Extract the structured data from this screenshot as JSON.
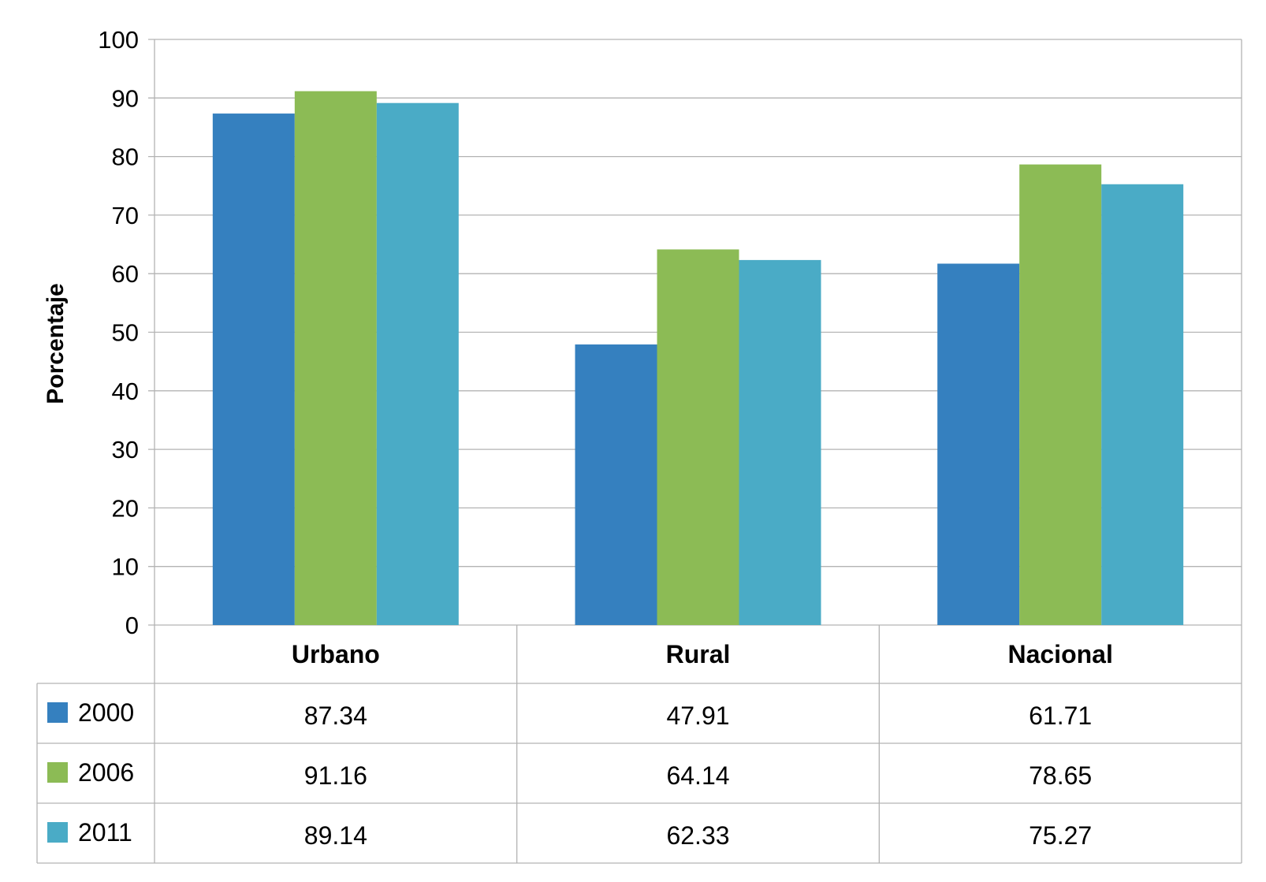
{
  "chart_data": {
    "type": "bar",
    "ylabel": "Porcentaje",
    "ylim": [
      0,
      100
    ],
    "yticks": [
      0,
      10,
      20,
      30,
      40,
      50,
      60,
      70,
      80,
      90,
      100
    ],
    "categories": [
      "Urbano",
      "Rural",
      "Nacional"
    ],
    "series": [
      {
        "name": "2000",
        "color": "#3580BF",
        "values": [
          87.34,
          47.91,
          61.71
        ]
      },
      {
        "name": "2006",
        "color": "#8CBB55",
        "values": [
          91.16,
          64.14,
          78.65
        ]
      },
      {
        "name": "2011",
        "color": "#4AABC6",
        "values": [
          89.14,
          62.33,
          75.27
        ]
      }
    ],
    "data_table": {
      "rows": [
        {
          "label": "2000",
          "values": [
            "87.34",
            "47.91",
            "61.71"
          ]
        },
        {
          "label": "2006",
          "values": [
            "91.16",
            "64.14",
            "78.65"
          ]
        },
        {
          "label": "2011",
          "values": [
            "89.14",
            "62.33",
            "75.27"
          ]
        }
      ]
    },
    "grid": true,
    "legend": "data-table-left"
  }
}
